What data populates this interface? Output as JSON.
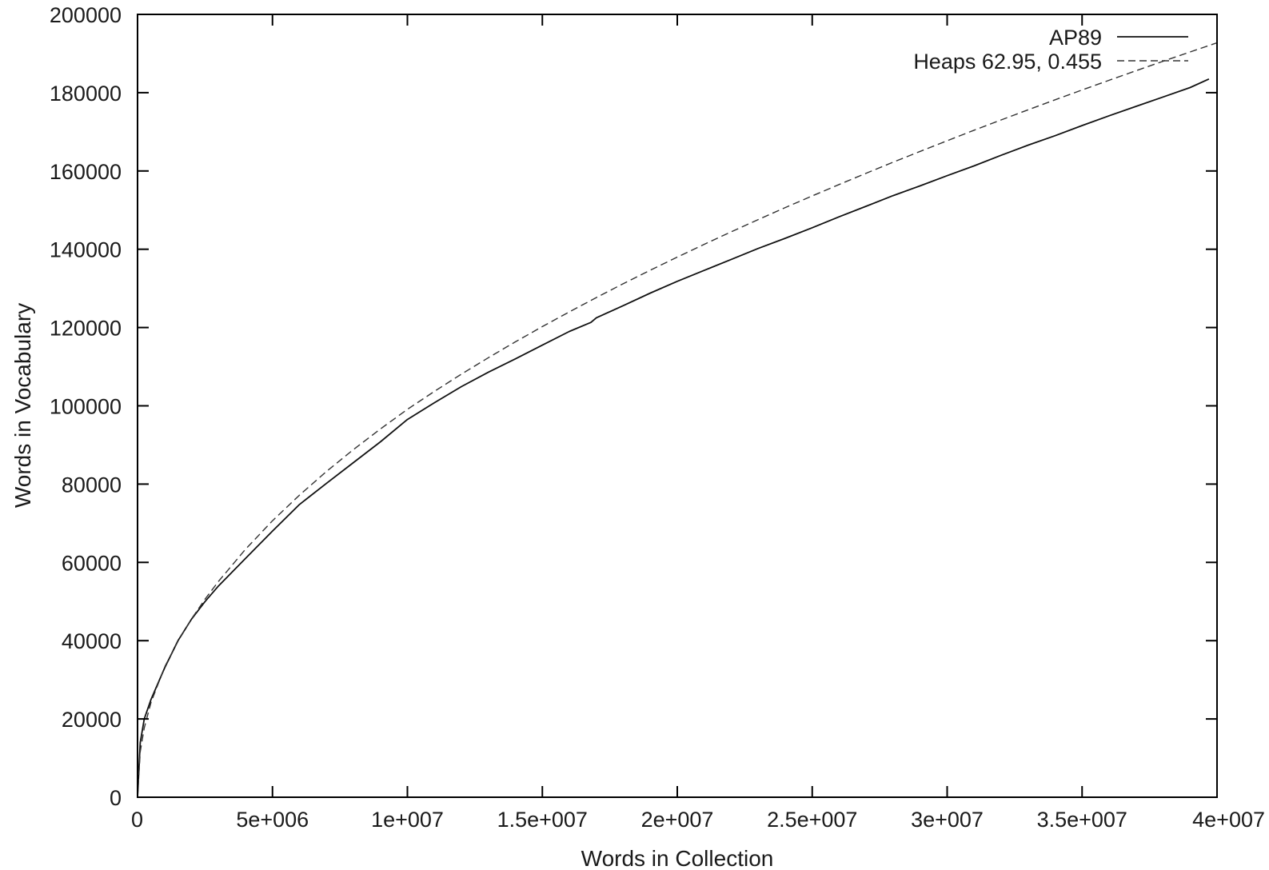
{
  "chart_data": {
    "type": "line",
    "title": "",
    "xlabel": "Words in Collection",
    "ylabel": "Words in Vocabulary",
    "xlim": [
      0,
      40000000
    ],
    "ylim": [
      0,
      200000
    ],
    "x_ticks": [
      {
        "value": 0,
        "label": "0"
      },
      {
        "value": 5000000,
        "label": "5e+006"
      },
      {
        "value": 10000000,
        "label": "1e+007"
      },
      {
        "value": 15000000,
        "label": "1.5e+007"
      },
      {
        "value": 20000000,
        "label": "2e+007"
      },
      {
        "value": 25000000,
        "label": "2.5e+007"
      },
      {
        "value": 30000000,
        "label": "3e+007"
      },
      {
        "value": 35000000,
        "label": "3.5e+007"
      },
      {
        "value": 40000000,
        "label": "4e+007"
      }
    ],
    "y_ticks": [
      {
        "value": 0,
        "label": "0"
      },
      {
        "value": 20000,
        "label": "20000"
      },
      {
        "value": 40000,
        "label": "40000"
      },
      {
        "value": 60000,
        "label": "60000"
      },
      {
        "value": 80000,
        "label": "80000"
      },
      {
        "value": 100000,
        "label": "100000"
      },
      {
        "value": 120000,
        "label": "120000"
      },
      {
        "value": 140000,
        "label": "140000"
      },
      {
        "value": 160000,
        "label": "160000"
      },
      {
        "value": 180000,
        "label": "180000"
      },
      {
        "value": 200000,
        "label": "200000"
      }
    ],
    "grid": false,
    "legend_position": "top-right",
    "series": [
      {
        "name": "AP89",
        "style": "solid",
        "color": "#111111",
        "x": [
          0,
          100000,
          250000,
          500000,
          1000000,
          1500000,
          2000000,
          2500000,
          3000000,
          4000000,
          5000000,
          6000000,
          7000000,
          8000000,
          9000000,
          10000000,
          11000000,
          12000000,
          13000000,
          14000000,
          15000000,
          16000000,
          16800000,
          17000000,
          18000000,
          19000000,
          20000000,
          21000000,
          22000000,
          23000000,
          24000000,
          25000000,
          26000000,
          27000000,
          28000000,
          29000000,
          30000000,
          31000000,
          32000000,
          33000000,
          34000000,
          35000000,
          36000000,
          37000000,
          38000000,
          39000000,
          39700000
        ],
        "y": [
          0,
          14000,
          20000,
          25000,
          33000,
          40000,
          45500,
          50000,
          54000,
          61000,
          68000,
          74800,
          80200,
          85500,
          90800,
          96500,
          100800,
          104900,
          108600,
          112000,
          115500,
          119000,
          121300,
          122500,
          125600,
          128800,
          131800,
          134600,
          137400,
          140200,
          142800,
          145500,
          148300,
          151000,
          153700,
          156200,
          158800,
          161300,
          164000,
          166600,
          169000,
          171600,
          174100,
          176500,
          178900,
          181300,
          183500
        ]
      },
      {
        "name": "Heaps 62.95, 0.455",
        "style": "dashed",
        "color": "#333333",
        "x": [
          0,
          100000,
          250000,
          500000,
          1000000,
          1500000,
          2000000,
          2500000,
          3000000,
          4000000,
          5000000,
          6000000,
          7000000,
          8000000,
          9000000,
          10000000,
          11000000,
          12000000,
          13000000,
          14000000,
          15000000,
          16000000,
          17000000,
          18000000,
          19000000,
          20000000,
          21000000,
          22000000,
          23000000,
          24000000,
          25000000,
          26000000,
          27000000,
          28000000,
          29000000,
          30000000,
          31000000,
          32000000,
          33000000,
          34000000,
          35000000,
          36000000,
          37000000,
          38000000,
          39000000,
          40000000
        ],
        "y": [
          0,
          11675,
          17710,
          24250,
          33240,
          39860,
          45550,
          50600,
          55150,
          63360,
          70640,
          77180,
          83230,
          88830,
          94090,
          99100,
          103690,
          108080,
          112300,
          116340,
          120240,
          124010,
          127660,
          131210,
          134650,
          138000,
          141270,
          144460,
          147580,
          150640,
          153620,
          156550,
          159420,
          162240,
          165010,
          167730,
          170410,
          173040,
          175630,
          178180,
          180700,
          183170,
          185620,
          188030,
          190400,
          192750
        ]
      }
    ]
  }
}
